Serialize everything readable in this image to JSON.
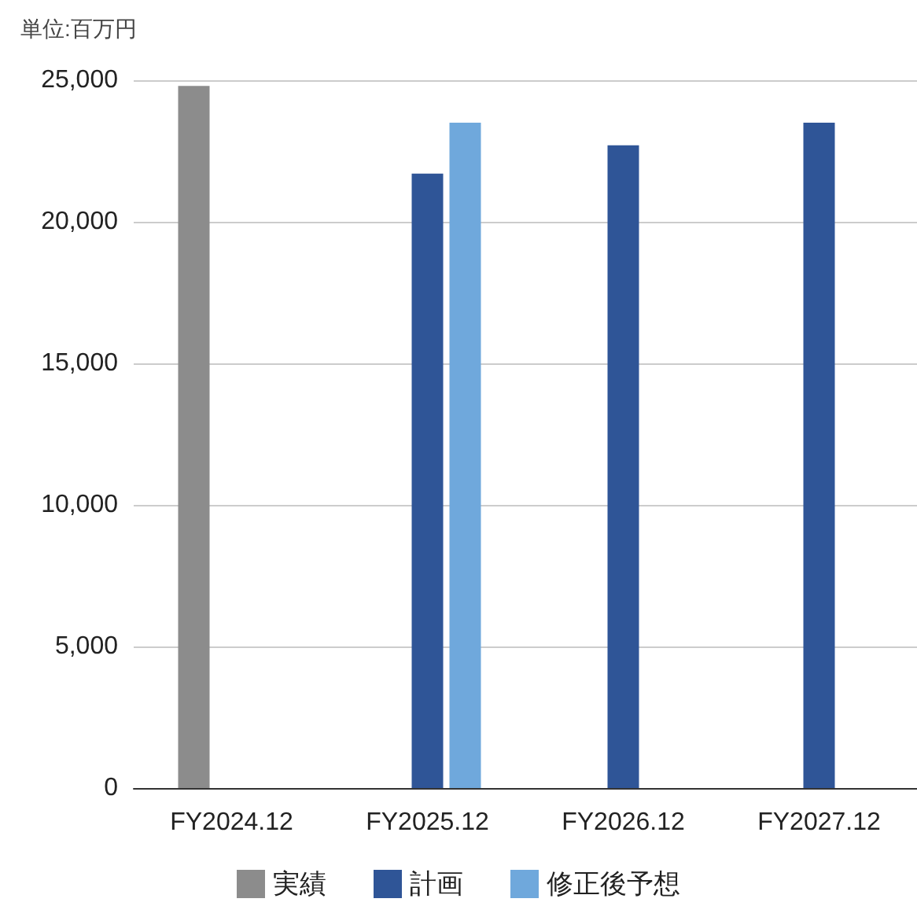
{
  "chart_data": {
    "type": "bar",
    "ylabel": "単位:百万円",
    "categories": [
      "FY2024.12",
      "FY2025.12",
      "FY2026.12",
      "FY2027.12"
    ],
    "series": [
      {
        "name": "実績",
        "color": "#8c8c8c",
        "values": [
          24800,
          null,
          null,
          null
        ]
      },
      {
        "name": "計画",
        "color": "#2f5597",
        "values": [
          null,
          21700,
          22700,
          23500
        ]
      },
      {
        "name": "修正後予想",
        "color": "#6fa8dc",
        "values": [
          null,
          23500,
          null,
          null
        ]
      }
    ],
    "ylim": [
      0,
      25000
    ],
    "yticks": [
      0,
      {
        "value": 5000,
        "label": "5,000"
      },
      {
        "value": 10000,
        "label": "10,000"
      },
      {
        "value": 15000,
        "label": "15,000"
      },
      {
        "value": 20000,
        "label": "20,000"
      },
      {
        "value": 25000,
        "label": "25,000"
      }
    ],
    "grid": true,
    "legend": "bottom"
  }
}
